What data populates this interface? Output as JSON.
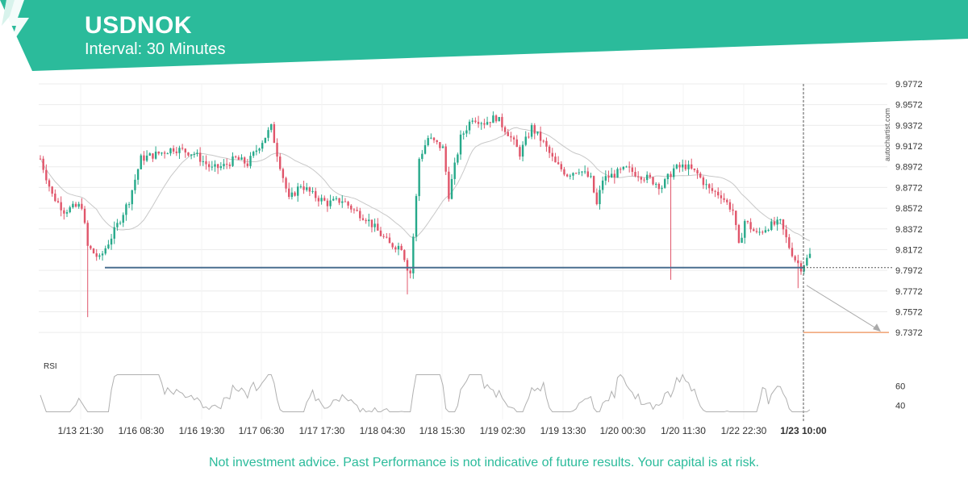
{
  "header": {
    "symbol": "USDNOK",
    "interval": "Interval: 30 Minutes"
  },
  "watermark": "autochartist.com",
  "footer": {
    "disclaimer": "Not investment advice. Past Performance is not indicative of future results. Your capital is at risk."
  },
  "colors": {
    "brand": "#2bbb9b",
    "bull": "#26a98a",
    "bear": "#e0556a",
    "support": "#4a6f8f",
    "target": "#f0a070",
    "ma": "#c8c8c8",
    "rsi": "#b0b0b0"
  },
  "chart_data": {
    "type": "candlestick",
    "price_axis": {
      "ticks": [
        "9.9772",
        "9.9572",
        "9.9372",
        "9.9172",
        "9.8972",
        "9.8772",
        "9.8572",
        "9.8372",
        "9.8172",
        "9.7972",
        "9.7772",
        "9.7572",
        "9.7372"
      ],
      "range": [
        9.7272,
        9.9772
      ]
    },
    "time_axis": {
      "ticks": [
        "1/13 21:30",
        "1/16 08:30",
        "1/16 19:30",
        "1/17 06:30",
        "1/17 17:30",
        "1/18 04:30",
        "1/18 15:30",
        "1/19 02:30",
        "1/19 13:30",
        "1/20 00:30",
        "1/20 11:30",
        "1/22 22:30",
        "1/23 10:00"
      ],
      "highlight": "1/23 10:00"
    },
    "support_level": 9.7998,
    "target_level": 9.7372,
    "rsi": {
      "label": "RSI",
      "ticks": [
        60,
        40
      ]
    },
    "price_path": [
      [
        0,
        9.905
      ],
      [
        4,
        9.87
      ],
      [
        8,
        9.855
      ],
      [
        14,
        9.86
      ],
      [
        16,
        9.82
      ],
      [
        20,
        9.808
      ],
      [
        25,
        9.835
      ],
      [
        30,
        9.865
      ],
      [
        34,
        9.905
      ],
      [
        40,
        9.91
      ],
      [
        45,
        9.915
      ],
      [
        52,
        9.91
      ],
      [
        58,
        9.895
      ],
      [
        62,
        9.898
      ],
      [
        66,
        9.905
      ],
      [
        70,
        9.9
      ],
      [
        74,
        9.918
      ],
      [
        78,
        9.935
      ],
      [
        80,
        9.91
      ],
      [
        84,
        9.865
      ],
      [
        88,
        9.88
      ],
      [
        92,
        9.87
      ],
      [
        97,
        9.862
      ],
      [
        102,
        9.865
      ],
      [
        106,
        9.855
      ],
      [
        110,
        9.848
      ],
      [
        114,
        9.835
      ],
      [
        118,
        9.822
      ],
      [
        122,
        9.82
      ],
      [
        124,
        9.8
      ],
      [
        125,
        9.795
      ],
      [
        126,
        9.83
      ],
      [
        128,
        9.905
      ],
      [
        131,
        9.925
      ],
      [
        136,
        9.915
      ],
      [
        138,
        9.87
      ],
      [
        142,
        9.925
      ],
      [
        146,
        9.945
      ],
      [
        150,
        9.94
      ],
      [
        154,
        9.945
      ],
      [
        158,
        9.93
      ],
      [
        162,
        9.91
      ],
      [
        166,
        9.935
      ],
      [
        170,
        9.92
      ],
      [
        174,
        9.9
      ],
      [
        178,
        9.89
      ],
      [
        182,
        9.895
      ],
      [
        186,
        9.885
      ],
      [
        188,
        9.86
      ],
      [
        190,
        9.885
      ],
      [
        194,
        9.89
      ],
      [
        198,
        9.895
      ],
      [
        202,
        9.89
      ],
      [
        206,
        9.885
      ],
      [
        210,
        9.878
      ],
      [
        214,
        9.895
      ],
      [
        218,
        9.898
      ],
      [
        222,
        9.89
      ],
      [
        226,
        9.875
      ],
      [
        230,
        9.87
      ],
      [
        232,
        9.862
      ],
      [
        234,
        9.855
      ],
      [
        236,
        9.82
      ],
      [
        238,
        9.845
      ],
      [
        242,
        9.832
      ],
      [
        246,
        9.84
      ],
      [
        250,
        9.843
      ],
      [
        253,
        9.82
      ],
      [
        255,
        9.808
      ],
      [
        257,
        9.8
      ],
      [
        260,
        9.812
      ]
    ]
  }
}
